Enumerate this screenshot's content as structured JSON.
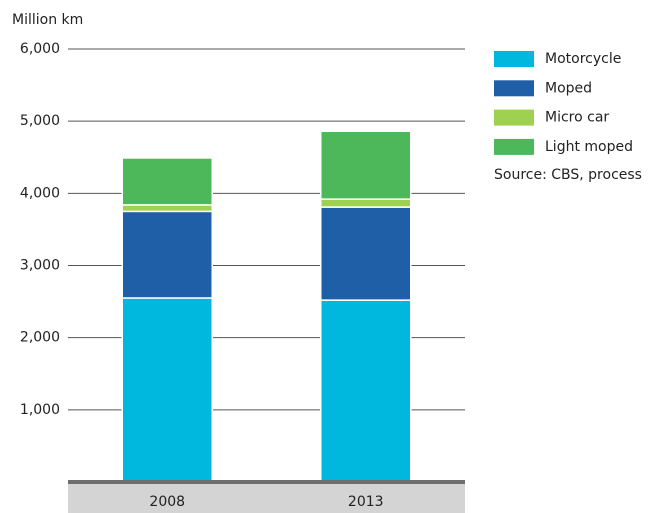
{
  "chart_data": {
    "type": "stacked-bar",
    "y_axis_label": "Million km",
    "categories": [
      "2008",
      "2013"
    ],
    "series": [
      {
        "name": "Motorcycle",
        "color": "#00b8de",
        "values": [
          2550,
          2520
        ]
      },
      {
        "name": "Moped",
        "color": "#1f5fa8",
        "values": [
          1200,
          1290
        ]
      },
      {
        "name": "Micro car",
        "color": "#9fd151",
        "values": [
          90,
          110
        ]
      },
      {
        "name": "Light moped",
        "color": "#4cb85a",
        "values": [
          650,
          940
        ]
      }
    ],
    "ylim": [
      0,
      6000
    ],
    "yticks": [
      {
        "value": 1000,
        "label": "1,000"
      },
      {
        "value": 2000,
        "label": "2,000"
      },
      {
        "value": 3000,
        "label": "3,000"
      },
      {
        "value": 4000,
        "label": "4,000"
      },
      {
        "value": 5000,
        "label": "5,000"
      },
      {
        "value": 6000,
        "label": "6,000"
      }
    ],
    "grid": true,
    "legend": "right",
    "annotation": "Source: CBS, process"
  }
}
